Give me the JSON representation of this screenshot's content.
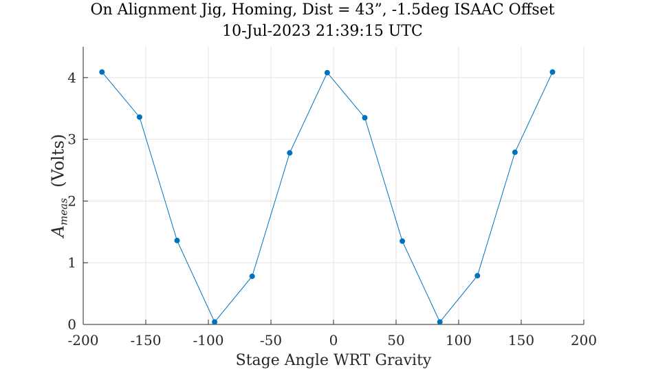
{
  "chart_data": {
    "type": "line",
    "title": "On Alignment Jig, Homing, Dist = 43”, -1.5deg ISAAC Offset",
    "subtitle": "10-Jul-2023 21:39:15 UTC",
    "xlabel": "Stage Angle WRT Gravity",
    "ylabel": {
      "symbol": "A",
      "subscript": "meas",
      "units": "(Volts)"
    },
    "xlim": [
      -200,
      200
    ],
    "ylim": [
      0,
      4.5
    ],
    "xticks": [
      -200,
      -150,
      -100,
      -50,
      0,
      50,
      100,
      150,
      200
    ],
    "xtick_labels": [
      "-200",
      "-150",
      "-100",
      "-50",
      "0",
      "50",
      "100",
      "150",
      "200"
    ],
    "yticks": [
      0,
      1,
      2,
      3,
      4
    ],
    "ytick_labels": [
      "0",
      "1",
      "2",
      "3",
      "4"
    ],
    "grid": true,
    "series": [
      {
        "color": "#0072BD",
        "x": [
          -185,
          -155,
          -125,
          -95,
          -65,
          -35,
          -5,
          25,
          55,
          85,
          115,
          145,
          175
        ],
        "y": [
          4.09,
          3.36,
          1.36,
          0.04,
          0.78,
          2.78,
          4.08,
          3.35,
          1.35,
          0.04,
          0.79,
          2.79,
          4.09
        ]
      }
    ]
  }
}
